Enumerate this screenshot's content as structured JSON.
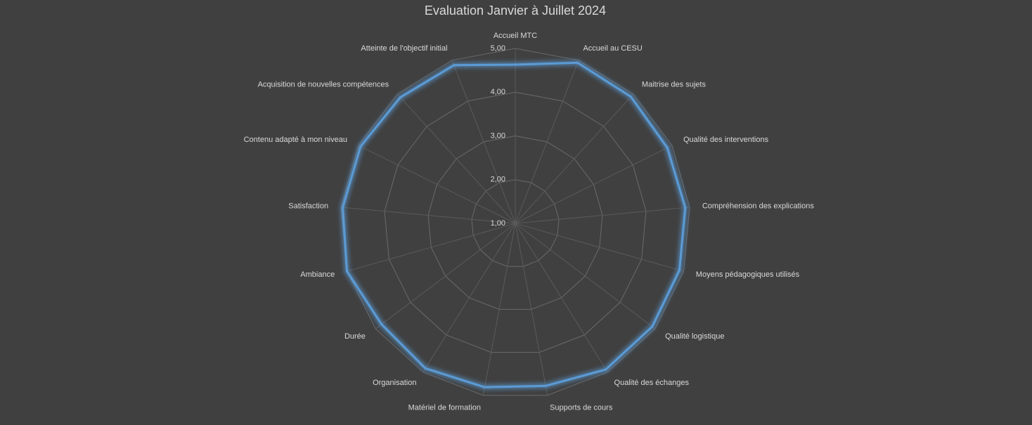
{
  "chart_data": {
    "type": "radar",
    "title": "Evaluation Janvier à Juillet 2024",
    "categories": [
      "Accueil MTC",
      "Accueil au CESU",
      "Maitrise des sujets",
      "Qualité des interventions",
      "Compréhension des explications",
      "Moyens pédagogiques utilisés",
      "Qualité logistique",
      "Qualité des échanges",
      "Supports de cours",
      "Matériel de formation",
      "Organisation",
      "Durée",
      "Ambiance",
      "Satisfaction",
      "Contenu adapté à mon niveau",
      "Acquisition de nouvelles compétences",
      "Atteinte de l'objectif initial"
    ],
    "values": [
      4.63,
      4.94,
      4.92,
      4.88,
      4.9,
      4.9,
      4.92,
      4.93,
      4.78,
      4.81,
      4.9,
      4.83,
      5.0,
      4.96,
      4.95,
      4.9,
      4.88
    ],
    "color": "#5b9bd5",
    "ylim": [
      1,
      5
    ],
    "yticks": [
      {
        "value": 1,
        "label": "1,00"
      },
      {
        "value": 2,
        "label": "2,00"
      },
      {
        "value": 3,
        "label": "3,00"
      },
      {
        "value": 4,
        "label": "4,00"
      },
      {
        "value": 5,
        "label": "5,00"
      }
    ],
    "grid": true
  }
}
